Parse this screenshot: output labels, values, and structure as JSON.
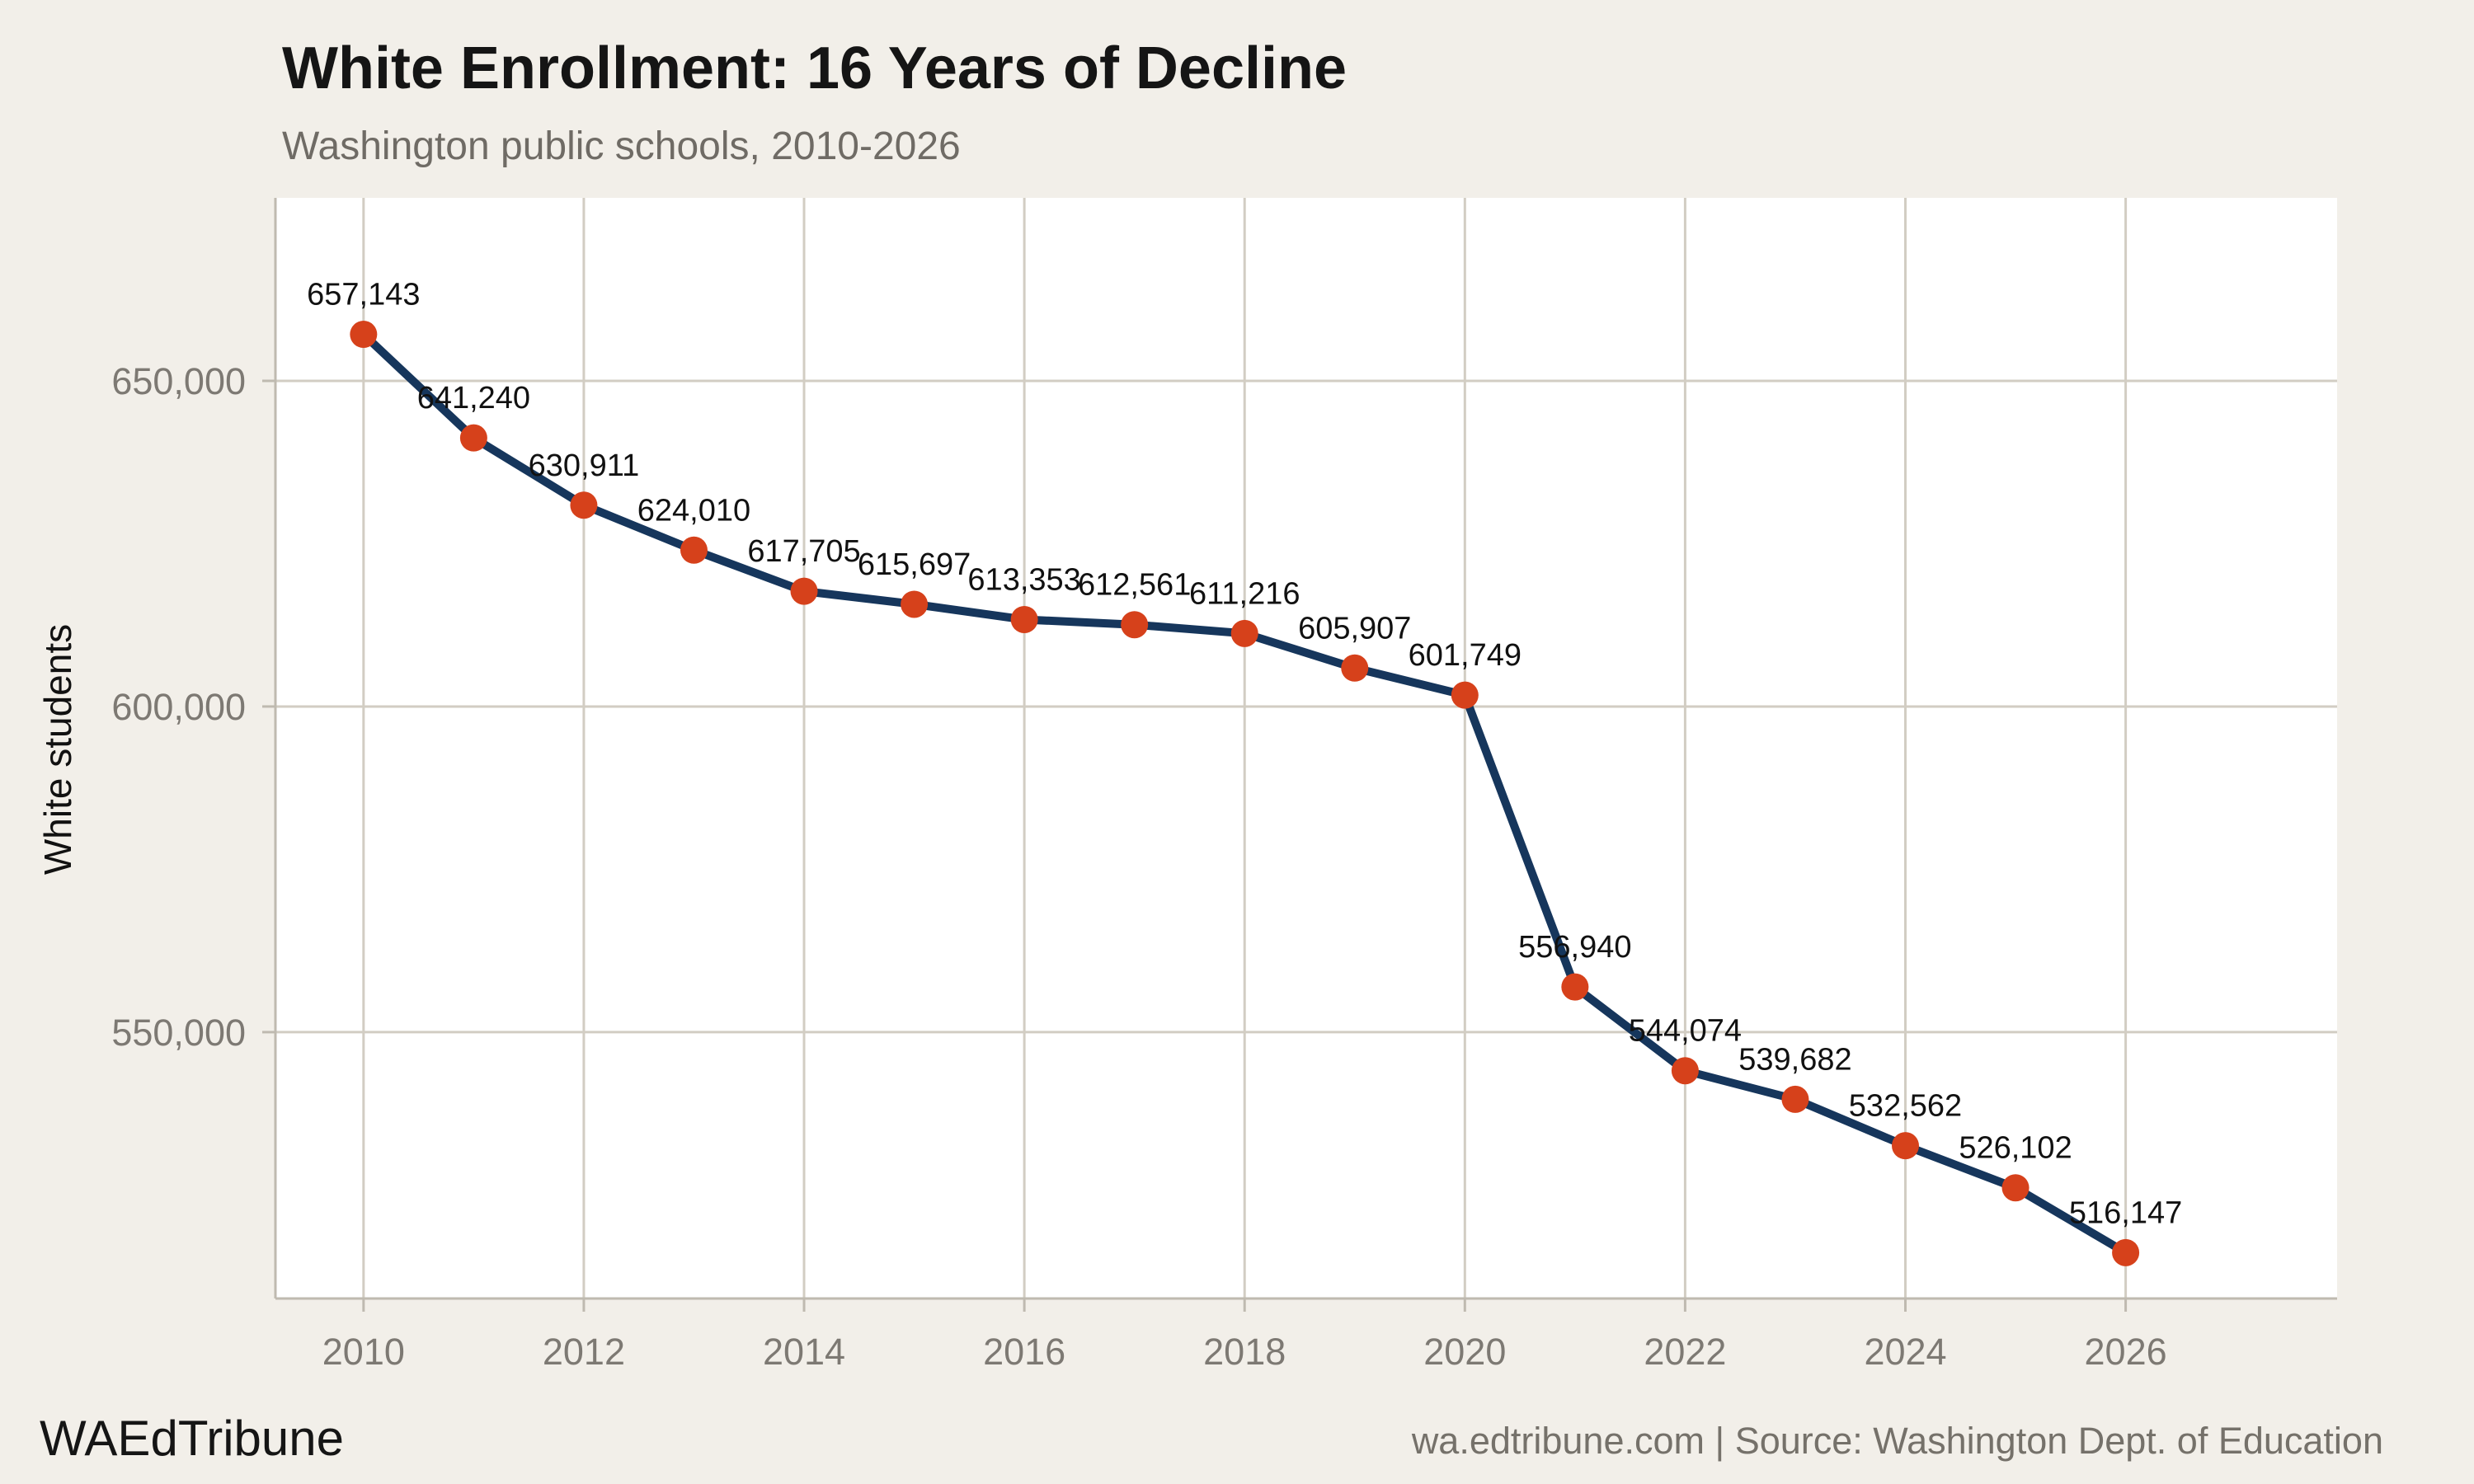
{
  "title": "White Enrollment: 16 Years of Decline",
  "subtitle": "Washington public schools, 2010-2026",
  "footer": {
    "left": "WAEdTribune",
    "right": "wa.edtribune.com | Source: Washington Dept. of Education"
  },
  "colors": {
    "background": "#f2efe9",
    "plot_background": "#ffffff",
    "gridline": "#d2cdc3",
    "axis": "#bfbab0",
    "tick": "#bfbab0",
    "tick_label": "#7d7973",
    "line": "#16365c",
    "marker": "#d6411b",
    "data_label": "#111111",
    "title": "#151515",
    "subtitle": "#6f6b65"
  },
  "chart_data": {
    "type": "line",
    "title": "White Enrollment: 16 Years of Decline",
    "subtitle": "Washington public schools, 2010-2026",
    "xlabel": "",
    "ylabel": "White students",
    "x": [
      2010,
      2011,
      2012,
      2013,
      2014,
      2015,
      2016,
      2017,
      2018,
      2019,
      2020,
      2021,
      2022,
      2023,
      2024,
      2025,
      2026
    ],
    "series": [
      {
        "name": "White students",
        "values": [
          657143,
          641240,
          630911,
          624010,
          617705,
          615697,
          613353,
          612561,
          611216,
          605907,
          601749,
          556940,
          544074,
          539682,
          532562,
          526102,
          516147
        ]
      }
    ],
    "point_labels": [
      "657,143",
      "641,240",
      "630,911",
      "624,010",
      "617,705",
      "615,697",
      "613,353",
      "612,561",
      "611,216",
      "605,907",
      "601,749",
      "556,940",
      "544,074",
      "539,682",
      "532,562",
      "526,102",
      "516,147"
    ],
    "x_ticks": {
      "values": [
        2010,
        2012,
        2014,
        2016,
        2018,
        2020,
        2022,
        2024,
        2026
      ],
      "labels": [
        "2010",
        "2012",
        "2014",
        "2016",
        "2018",
        "2020",
        "2022",
        "2024",
        "2026"
      ]
    },
    "y_ticks": {
      "values": [
        550000,
        600000,
        650000
      ],
      "labels": [
        "550,000",
        "600,000",
        "650,000"
      ]
    },
    "x_domain": [
      2009.2,
      2027.92
    ],
    "y_domain": [
      509100,
      678100
    ],
    "grid": true,
    "legend": "none"
  }
}
